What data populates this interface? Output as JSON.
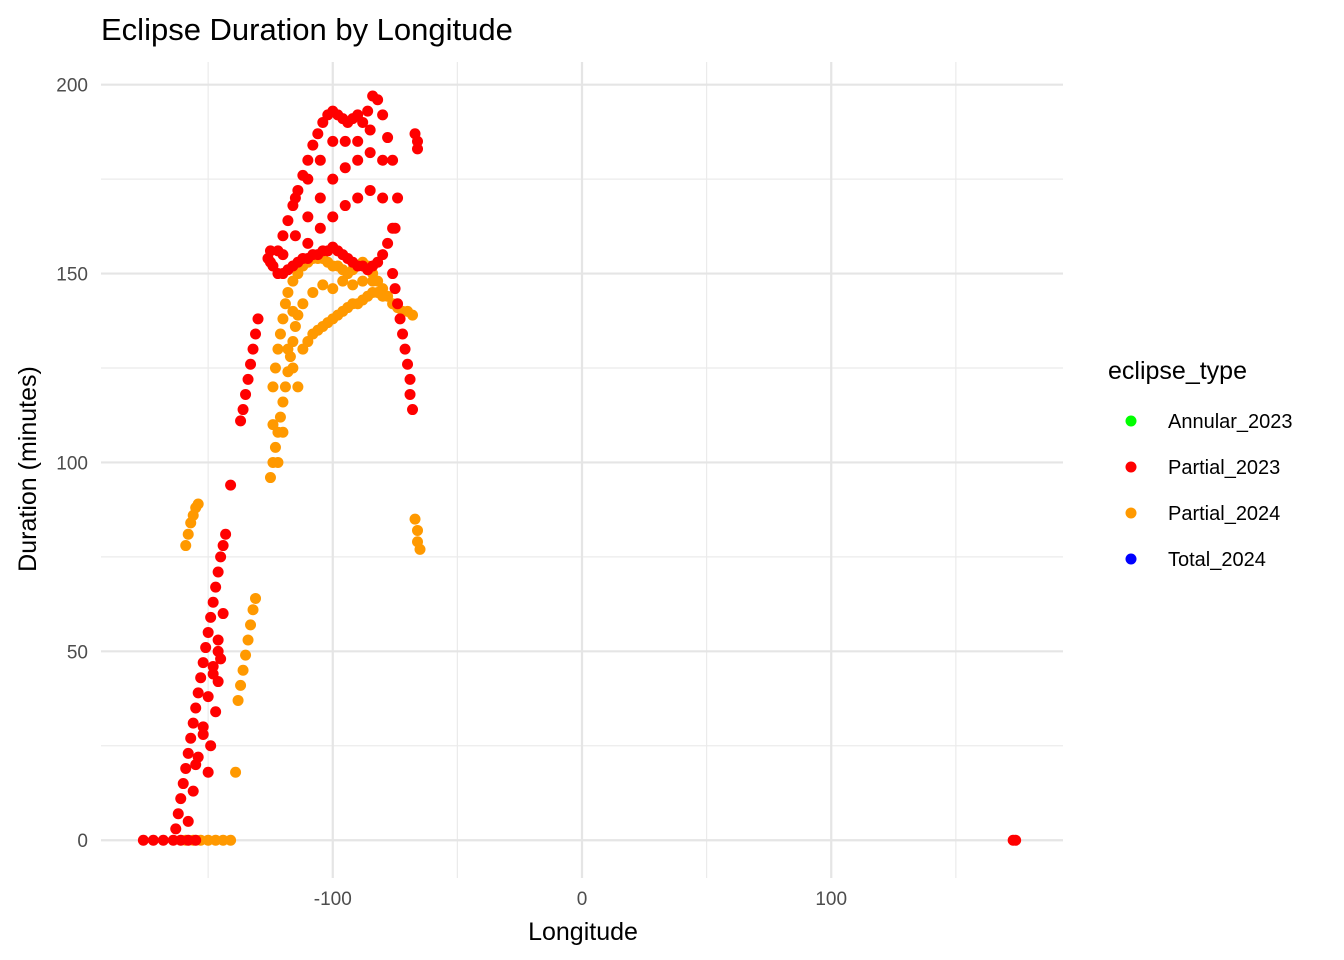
{
  "chart_data": {
    "type": "scatter",
    "title": "Eclipse Duration by Longitude",
    "xlabel": "Longitude",
    "ylabel": "Duration (minutes)",
    "xlim": [
      -193,
      193
    ],
    "ylim": [
      -10,
      206
    ],
    "x_ticks": [
      -100,
      0,
      100
    ],
    "x_tick_labels": [
      "-100",
      "0",
      "100"
    ],
    "x_minor_ticks": [
      -150,
      -50,
      50,
      150
    ],
    "y_ticks": [
      0,
      50,
      100,
      150,
      200
    ],
    "y_tick_labels": [
      "0",
      "50",
      "100",
      "150",
      "200"
    ],
    "y_minor_ticks": [
      25,
      75,
      125,
      175
    ],
    "grid": true,
    "legend": {
      "title": "eclipse_type",
      "position": "right",
      "entries": [
        {
          "label": "Annular_2023",
          "color": "#00ff00"
        },
        {
          "label": "Partial_2023",
          "color": "#ff0000"
        },
        {
          "label": "Partial_2024",
          "color": "#ff9900"
        },
        {
          "label": "Total_2024",
          "color": "#0000ff"
        }
      ]
    },
    "series": [
      {
        "name": "Partial_2023",
        "color": "#ff0000",
        "points": [
          [
            -176,
            0
          ],
          [
            -172,
            0
          ],
          [
            -168,
            0
          ],
          [
            -164,
            0
          ],
          [
            -161,
            0
          ],
          [
            -158,
            0
          ],
          [
            -155,
            0
          ],
          [
            -163,
            3
          ],
          [
            -162,
            7
          ],
          [
            -161,
            11
          ],
          [
            -160,
            15
          ],
          [
            -159,
            19
          ],
          [
            -158,
            23
          ],
          [
            -157,
            27
          ],
          [
            -156,
            31
          ],
          [
            -155,
            35
          ],
          [
            -154,
            39
          ],
          [
            -153,
            43
          ],
          [
            -152,
            47
          ],
          [
            -151,
            51
          ],
          [
            -150,
            55
          ],
          [
            -149,
            59
          ],
          [
            -148,
            63
          ],
          [
            -147,
            67
          ],
          [
            -146,
            71
          ],
          [
            -145,
            75
          ],
          [
            -144,
            78
          ],
          [
            -143,
            81
          ],
          [
            -158,
            5
          ],
          [
            -156,
            13
          ],
          [
            -154,
            22
          ],
          [
            -152,
            30
          ],
          [
            -150,
            38
          ],
          [
            -148,
            46
          ],
          [
            -146,
            53
          ],
          [
            -144,
            60
          ],
          [
            -155,
            20
          ],
          [
            -152,
            28
          ],
          [
            -148,
            44
          ],
          [
            -146,
            50
          ],
          [
            -150,
            18
          ],
          [
            -149,
            25
          ],
          [
            -147,
            34
          ],
          [
            -146,
            42
          ],
          [
            -145,
            48
          ],
          [
            -141,
            94
          ],
          [
            -137,
            111
          ],
          [
            -136,
            114
          ],
          [
            -135,
            118
          ],
          [
            -134,
            122
          ],
          [
            -133,
            126
          ],
          [
            -132,
            130
          ],
          [
            -131,
            134
          ],
          [
            -130,
            138
          ],
          [
            -126,
            154
          ],
          [
            -125,
            153
          ],
          [
            -125,
            156
          ],
          [
            -124,
            152
          ],
          [
            -122,
            156
          ],
          [
            -120,
            160
          ],
          [
            -118,
            164
          ],
          [
            -116,
            168
          ],
          [
            -114,
            172
          ],
          [
            -112,
            176
          ],
          [
            -110,
            180
          ],
          [
            -108,
            184
          ],
          [
            -106,
            187
          ],
          [
            -104,
            190
          ],
          [
            -102,
            192
          ],
          [
            -100,
            193
          ],
          [
            -98,
            192
          ],
          [
            -96,
            191
          ],
          [
            -94,
            190
          ],
          [
            -92,
            191
          ],
          [
            -90,
            192
          ],
          [
            -88,
            190
          ],
          [
            -86,
            193
          ],
          [
            -84,
            197
          ],
          [
            -82,
            196
          ],
          [
            -80,
            192
          ],
          [
            -78,
            186
          ],
          [
            -76,
            180
          ],
          [
            -74,
            170
          ],
          [
            -122,
            150
          ],
          [
            -120,
            150
          ],
          [
            -118,
            151
          ],
          [
            -116,
            152
          ],
          [
            -114,
            153
          ],
          [
            -112,
            154
          ],
          [
            -110,
            154
          ],
          [
            -108,
            155
          ],
          [
            -106,
            155
          ],
          [
            -104,
            156
          ],
          [
            -102,
            156
          ],
          [
            -100,
            157
          ],
          [
            -98,
            156
          ],
          [
            -96,
            155
          ],
          [
            -94,
            154
          ],
          [
            -92,
            153
          ],
          [
            -90,
            152
          ],
          [
            -88,
            152
          ],
          [
            -86,
            151
          ],
          [
            -84,
            152
          ],
          [
            -82,
            153
          ],
          [
            -80,
            155
          ],
          [
            -78,
            158
          ],
          [
            -76,
            162
          ],
          [
            -120,
            155
          ],
          [
            -115,
            160
          ],
          [
            -110,
            165
          ],
          [
            -105,
            170
          ],
          [
            -100,
            175
          ],
          [
            -95,
            178
          ],
          [
            -90,
            180
          ],
          [
            -85,
            182
          ],
          [
            -80,
            180
          ],
          [
            -115,
            170
          ],
          [
            -110,
            175
          ],
          [
            -105,
            180
          ],
          [
            -100,
            185
          ],
          [
            -95,
            185
          ],
          [
            -90,
            185
          ],
          [
            -85,
            188
          ],
          [
            -110,
            158
          ],
          [
            -105,
            162
          ],
          [
            -100,
            165
          ],
          [
            -95,
            168
          ],
          [
            -90,
            170
          ],
          [
            -85,
            172
          ],
          [
            -80,
            170
          ],
          [
            -75,
            162
          ],
          [
            -76,
            150
          ],
          [
            -75,
            146
          ],
          [
            -74,
            142
          ],
          [
            -73,
            138
          ],
          [
            -72,
            134
          ],
          [
            -71,
            130
          ],
          [
            -70,
            126
          ],
          [
            -69,
            122
          ],
          [
            -69,
            118
          ],
          [
            -68,
            114
          ],
          [
            -67,
            187
          ],
          [
            -66,
            185
          ],
          [
            -66,
            183
          ]
        ]
      },
      {
        "name": "Partial_2024",
        "color": "#ff9900",
        "points": [
          [
            -159,
            0
          ],
          [
            -156,
            0
          ],
          [
            -153,
            0
          ],
          [
            -150,
            0
          ],
          [
            -147,
            0
          ],
          [
            -144,
            0
          ],
          [
            -141,
            0
          ],
          [
            -159,
            78
          ],
          [
            -158,
            81
          ],
          [
            -157,
            84
          ],
          [
            -156,
            86
          ],
          [
            -155,
            88
          ],
          [
            -154,
            89
          ],
          [
            -139,
            18
          ],
          [
            -138,
            37
          ],
          [
            -137,
            41
          ],
          [
            -136,
            45
          ],
          [
            -135,
            49
          ],
          [
            -134,
            53
          ],
          [
            -133,
            57
          ],
          [
            -132,
            61
          ],
          [
            -131,
            64
          ],
          [
            -125,
            96
          ],
          [
            -124,
            100
          ],
          [
            -123,
            104
          ],
          [
            -122,
            108
          ],
          [
            -121,
            112
          ],
          [
            -120,
            116
          ],
          [
            -119,
            120
          ],
          [
            -118,
            124
          ],
          [
            -117,
            128
          ],
          [
            -116,
            132
          ],
          [
            -115,
            136
          ],
          [
            -114,
            139
          ],
          [
            -124,
            110
          ],
          [
            -124,
            120
          ],
          [
            -123,
            125
          ],
          [
            -122,
            130
          ],
          [
            -121,
            134
          ],
          [
            -120,
            138
          ],
          [
            -119,
            142
          ],
          [
            -118,
            145
          ],
          [
            -116,
            148
          ],
          [
            -114,
            150
          ],
          [
            -112,
            152
          ],
          [
            -110,
            153
          ],
          [
            -108,
            154
          ],
          [
            -106,
            154
          ],
          [
            -104,
            154
          ],
          [
            -102,
            153
          ],
          [
            -100,
            152
          ],
          [
            -98,
            152
          ],
          [
            -96,
            151
          ],
          [
            -94,
            150
          ],
          [
            -92,
            151
          ],
          [
            -90,
            152
          ],
          [
            -88,
            153
          ],
          [
            -86,
            152
          ],
          [
            -84,
            150
          ],
          [
            -82,
            148
          ],
          [
            -80,
            146
          ],
          [
            -78,
            144
          ],
          [
            -76,
            142
          ],
          [
            -74,
            141
          ],
          [
            -72,
            140
          ],
          [
            -70,
            140
          ],
          [
            -68,
            139
          ],
          [
            -112,
            130
          ],
          [
            -110,
            132
          ],
          [
            -108,
            134
          ],
          [
            -106,
            135
          ],
          [
            -104,
            136
          ],
          [
            -102,
            137
          ],
          [
            -100,
            138
          ],
          [
            -98,
            139
          ],
          [
            -96,
            140
          ],
          [
            -94,
            141
          ],
          [
            -92,
            142
          ],
          [
            -90,
            142
          ],
          [
            -88,
            143
          ],
          [
            -86,
            144
          ],
          [
            -84,
            145
          ],
          [
            -82,
            145
          ],
          [
            -80,
            144
          ],
          [
            -116,
            140
          ],
          [
            -112,
            142
          ],
          [
            -108,
            145
          ],
          [
            -104,
            147
          ],
          [
            -100,
            146
          ],
          [
            -96,
            148
          ],
          [
            -92,
            147
          ],
          [
            -88,
            148
          ],
          [
            -84,
            148
          ],
          [
            -118,
            130
          ],
          [
            -116,
            125
          ],
          [
            -114,
            120
          ],
          [
            -120,
            108
          ],
          [
            -122,
            100
          ],
          [
            -67,
            85
          ],
          [
            -66,
            82
          ],
          [
            -66,
            79
          ],
          [
            -65,
            77
          ]
        ]
      }
    ],
    "extra_points": [
      {
        "series": "Partial_2023",
        "x": 173,
        "y": 0
      },
      {
        "series": "Partial_2023",
        "x": 174,
        "y": 0
      }
    ]
  }
}
